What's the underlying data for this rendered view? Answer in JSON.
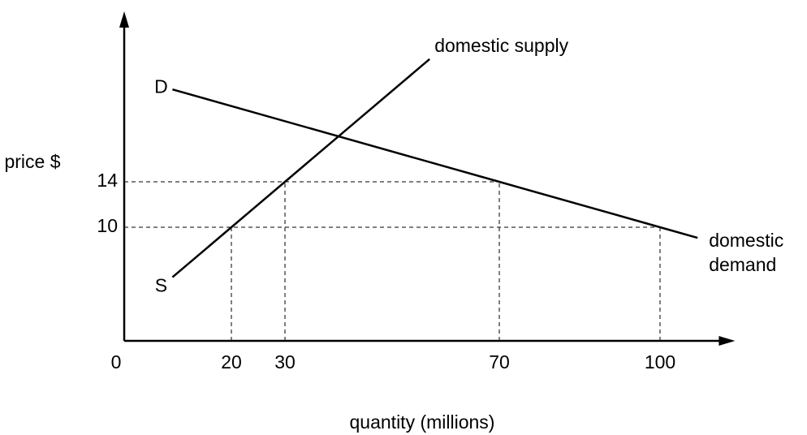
{
  "chart_data": {
    "type": "line",
    "xlabel": "quantity (millions)",
    "ylabel": "price $",
    "xlim": [
      0,
      114
    ],
    "ylim": [
      0,
      29
    ],
    "xticks": [
      0,
      20,
      30,
      70,
      100
    ],
    "yticks": [
      10,
      14
    ],
    "series": [
      {
        "name": "domestic supply",
        "end_label": "S",
        "color": "#000000",
        "x": [
          9,
          20,
          30,
          57
        ],
        "values": [
          5.6,
          10,
          14,
          24.8
        ]
      },
      {
        "name": "domestic demand",
        "end_label": "D",
        "color": "#000000",
        "x": [
          9,
          70,
          100,
          107
        ],
        "values": [
          22.13,
          14,
          10,
          9.07
        ]
      }
    ],
    "guides": [
      {
        "x": 20,
        "y": 10
      },
      {
        "x": 30,
        "y": 14
      },
      {
        "x": 70,
        "y": 14
      },
      {
        "x": 100,
        "y": 10
      }
    ]
  }
}
